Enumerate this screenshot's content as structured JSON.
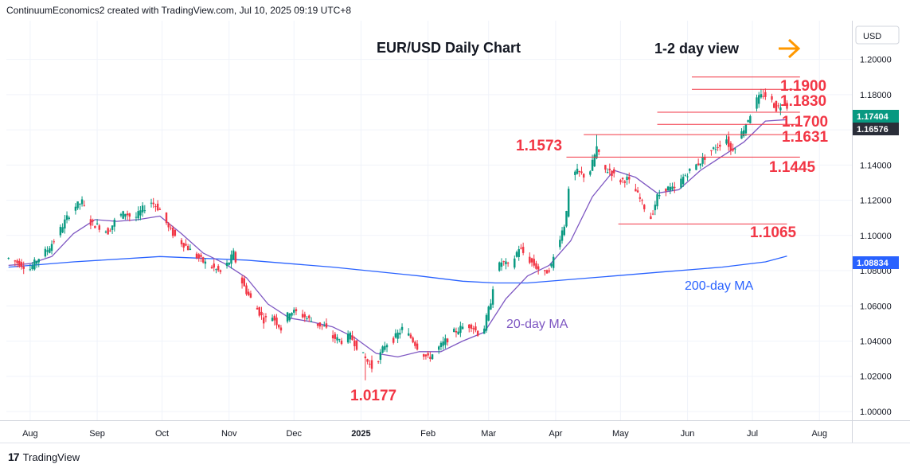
{
  "header": {
    "credit": "ContinuumEconomics2 created with TradingView.com, Jul 10, 2025 09:19 UTC+8"
  },
  "footer": {
    "brand": "TradingView",
    "brand_mark": "17"
  },
  "colors": {
    "candle_up": "#089981",
    "candle_down": "#f23645",
    "ma20": "#7e57c2",
    "ma200": "#2962ff",
    "level": "#f23645",
    "arrow": "#ff9800",
    "price_badge": "#089981",
    "ma_badge": "#2a2e39"
  },
  "chart_data": {
    "type": "candlestick",
    "title": "EUR/USD Daily Chart",
    "subtitle": "1-2 day view",
    "currency_label": "USD",
    "y_ticks": [
      "1.20000",
      "1.18000",
      "1.16000",
      "1.14000",
      "1.12000",
      "1.10000",
      "1.08000",
      "1.06000",
      "1.04000",
      "1.02000",
      "1.00000"
    ],
    "y_range": [
      0.995,
      1.222
    ],
    "x_labels": [
      {
        "label": "Aug",
        "day": 0
      },
      {
        "label": "Sep",
        "day": 31
      },
      {
        "label": "Oct",
        "day": 61
      },
      {
        "label": "Nov",
        "day": 92
      },
      {
        "label": "Dec",
        "day": 122
      },
      {
        "label": "2025",
        "day": 153
      },
      {
        "label": "Feb",
        "day": 184
      },
      {
        "label": "Mar",
        "day": 212
      },
      {
        "label": "Apr",
        "day": 243
      },
      {
        "label": "May",
        "day": 273
      },
      {
        "label": "Jun",
        "day": 304
      },
      {
        "label": "Jul",
        "day": 334
      },
      {
        "label": "Aug",
        "day": 365
      }
    ],
    "x_range_days": [
      -11,
      380
    ],
    "price_path": [
      [
        -10,
        1.087
      ],
      [
        -5,
        1.084
      ],
      [
        0,
        1.081
      ],
      [
        3,
        1.086
      ],
      [
        8,
        1.092
      ],
      [
        12,
        1.099
      ],
      [
        16,
        1.108
      ],
      [
        20,
        1.116
      ],
      [
        24,
        1.119
      ],
      [
        28,
        1.107
      ],
      [
        32,
        1.105
      ],
      [
        36,
        1.102
      ],
      [
        40,
        1.11
      ],
      [
        44,
        1.113
      ],
      [
        48,
        1.109
      ],
      [
        52,
        1.115
      ],
      [
        56,
        1.119
      ],
      [
        58,
        1.117
      ],
      [
        61,
        1.113
      ],
      [
        64,
        1.104
      ],
      [
        68,
        1.098
      ],
      [
        72,
        1.094
      ],
      [
        76,
        1.089
      ],
      [
        80,
        1.085
      ],
      [
        84,
        1.082
      ],
      [
        88,
        1.079
      ],
      [
        92,
        1.085
      ],
      [
        94,
        1.09
      ],
      [
        97,
        1.076
      ],
      [
        100,
        1.068
      ],
      [
        104,
        1.06
      ],
      [
        108,
        1.052
      ],
      [
        112,
        1.054
      ],
      [
        116,
        1.047
      ],
      [
        120,
        1.057
      ],
      [
        124,
        1.056
      ],
      [
        128,
        1.053
      ],
      [
        132,
        1.05
      ],
      [
        136,
        1.048
      ],
      [
        140,
        1.042
      ],
      [
        144,
        1.04
      ],
      [
        148,
        1.043
      ],
      [
        152,
        1.035
      ],
      [
        155,
        1.03
      ],
      [
        158,
        1.025
      ],
      [
        161,
        1.03
      ],
      [
        164,
        1.038
      ],
      [
        168,
        1.041
      ],
      [
        172,
        1.047
      ],
      [
        176,
        1.042
      ],
      [
        180,
        1.035
      ],
      [
        184,
        1.03
      ],
      [
        188,
        1.035
      ],
      [
        192,
        1.04
      ],
      [
        196,
        1.045
      ],
      [
        200,
        1.048
      ],
      [
        204,
        1.049
      ],
      [
        208,
        1.043
      ],
      [
        210,
        1.048
      ],
      [
        213,
        1.063
      ],
      [
        215,
        1.079
      ],
      [
        218,
        1.085
      ],
      [
        222,
        1.082
      ],
      [
        226,
        1.093
      ],
      [
        230,
        1.087
      ],
      [
        234,
        1.082
      ],
      [
        238,
        1.078
      ],
      [
        241,
        1.083
      ],
      [
        244,
        1.096
      ],
      [
        247,
        1.106
      ],
      [
        250,
        1.134
      ],
      [
        253,
        1.136
      ],
      [
        256,
        1.134
      ],
      [
        259,
        1.137
      ],
      [
        262,
        1.15
      ],
      [
        265,
        1.137
      ],
      [
        268,
        1.137
      ],
      [
        272,
        1.131
      ],
      [
        276,
        1.132
      ],
      [
        280,
        1.125
      ],
      [
        284,
        1.116
      ],
      [
        287,
        1.11
      ],
      [
        290,
        1.122
      ],
      [
        294,
        1.127
      ],
      [
        298,
        1.126
      ],
      [
        302,
        1.133
      ],
      [
        306,
        1.138
      ],
      [
        310,
        1.142
      ],
      [
        314,
        1.147
      ],
      [
        318,
        1.151
      ],
      [
        322,
        1.155
      ],
      [
        324,
        1.148
      ],
      [
        327,
        1.153
      ],
      [
        330,
        1.161
      ],
      [
        333,
        1.169
      ],
      [
        336,
        1.177
      ],
      [
        339,
        1.18
      ],
      [
        342,
        1.178
      ],
      [
        345,
        1.172
      ],
      [
        348,
        1.175
      ],
      [
        350,
        1.174
      ]
    ],
    "wick_extremes": [
      {
        "day": 155,
        "low": 1.0177
      },
      {
        "day": 262,
        "high": 1.1573
      },
      {
        "day": 286,
        "low": 1.1065
      },
      {
        "day": 339,
        "high": 1.183
      }
    ],
    "ma20": [
      [
        -10,
        1.083
      ],
      [
        0,
        1.084
      ],
      [
        10,
        1.088
      ],
      [
        20,
        1.101
      ],
      [
        30,
        1.109
      ],
      [
        40,
        1.108
      ],
      [
        50,
        1.109
      ],
      [
        60,
        1.111
      ],
      [
        70,
        1.101
      ],
      [
        80,
        1.09
      ],
      [
        90,
        1.084
      ],
      [
        100,
        1.076
      ],
      [
        110,
        1.061
      ],
      [
        120,
        1.053
      ],
      [
        130,
        1.051
      ],
      [
        140,
        1.048
      ],
      [
        150,
        1.042
      ],
      [
        160,
        1.033
      ],
      [
        170,
        1.031
      ],
      [
        180,
        1.034
      ],
      [
        190,
        1.034
      ],
      [
        200,
        1.04
      ],
      [
        210,
        1.045
      ],
      [
        220,
        1.064
      ],
      [
        230,
        1.077
      ],
      [
        240,
        1.083
      ],
      [
        250,
        1.097
      ],
      [
        260,
        1.122
      ],
      [
        270,
        1.137
      ],
      [
        280,
        1.133
      ],
      [
        290,
        1.124
      ],
      [
        300,
        1.126
      ],
      [
        310,
        1.137
      ],
      [
        320,
        1.145
      ],
      [
        330,
        1.153
      ],
      [
        340,
        1.165
      ],
      [
        350,
        1.1658
      ]
    ],
    "ma200": [
      [
        -10,
        1.082
      ],
      [
        20,
        1.085
      ],
      [
        60,
        1.088
      ],
      [
        100,
        1.086
      ],
      [
        140,
        1.082
      ],
      [
        180,
        1.077
      ],
      [
        200,
        1.074
      ],
      [
        215,
        1.073
      ],
      [
        230,
        1.073
      ],
      [
        260,
        1.076
      ],
      [
        290,
        1.079
      ],
      [
        320,
        1.082
      ],
      [
        340,
        1.085
      ],
      [
        350,
        1.0883
      ]
    ],
    "levels": [
      {
        "value": 1.19,
        "label": "1.1900",
        "from_day": 306,
        "to_day": 356
      },
      {
        "value": 1.183,
        "label": "1.1830",
        "from_day": 306,
        "to_day": 356
      },
      {
        "value": 1.17,
        "label": "1.1700",
        "from_day": 290,
        "to_day": 356
      },
      {
        "value": 1.1631,
        "label": "1.1631",
        "from_day": 290,
        "to_day": 356
      },
      {
        "value": 1.1573,
        "label": "1.1573",
        "from_day": 256,
        "to_day": 356
      },
      {
        "value": 1.1445,
        "label": "1.1445",
        "from_day": 248,
        "to_day": 356
      },
      {
        "value": 1.1065,
        "label": "1.1065",
        "from_day": 272,
        "to_day": 350
      }
    ],
    "annotations": {
      "low_label": "1.0177",
      "ma20_label": "20-day MA",
      "ma200_label": "200-day MA"
    },
    "price_badges": [
      {
        "value": 1.17404,
        "label": "1.17404",
        "kind": "price"
      },
      {
        "value": 1.16576,
        "label": "1.16576",
        "kind": "ma20"
      },
      {
        "value": 1.08834,
        "label": "1.08834",
        "kind": "ma200"
      }
    ]
  }
}
